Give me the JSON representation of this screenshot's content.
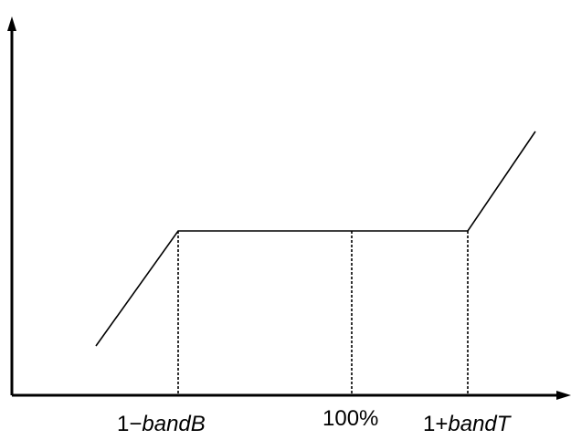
{
  "diagram": {
    "colors": {
      "line": "#000000",
      "background": "#ffffff"
    },
    "labels": {
      "lower": {
        "prefix": "1−",
        "var": "bandB"
      },
      "center": "100%",
      "upper": {
        "prefix": "1+",
        "var": "bandT"
      }
    }
  }
}
